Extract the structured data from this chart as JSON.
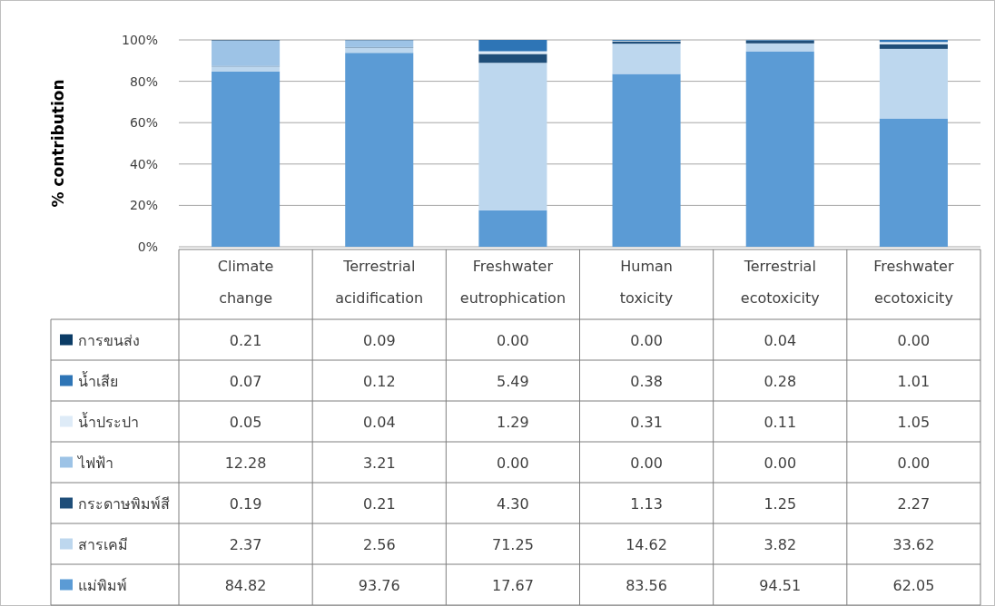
{
  "chart_data": {
    "type": "bar",
    "stacked": true,
    "ylabel": "% contribution",
    "categories": [
      "Climate change",
      "Terrestrial acidification",
      "Freshwater eutrophication",
      "Human toxicity",
      "Terrestrial ecotoxicity",
      "Freshwater ecotoxicity"
    ],
    "ylim": [
      0,
      100
    ],
    "yticks": [
      {
        "value": 0,
        "label": "0%"
      },
      {
        "value": 20,
        "label": "20%"
      },
      {
        "value": 40,
        "label": "40%"
      },
      {
        "value": 60,
        "label": "60%"
      },
      {
        "value": 80,
        "label": "80%"
      },
      {
        "value": 100,
        "label": "100%"
      }
    ],
    "grid": "y",
    "legend": "bottom",
    "series": [
      {
        "name": "แม่พิมพ์",
        "color": "#5b9bd5",
        "values": [
          84.82,
          93.76,
          17.67,
          83.56,
          94.51,
          62.05
        ],
        "value_labels": [
          "84.82",
          "93.76",
          "17.67",
          "83.56",
          "94.51",
          "62.05"
        ]
      },
      {
        "name": "สารเคมี",
        "color": "#bdd7ee",
        "values": [
          2.37,
          2.56,
          71.25,
          14.62,
          3.82,
          33.62
        ],
        "value_labels": [
          "2.37",
          "2.56",
          "71.25",
          "14.62",
          "3.82",
          "33.62"
        ]
      },
      {
        "name": "กระดาษพิมพ์สี",
        "color": "#1f4e79",
        "values": [
          0.19,
          0.21,
          4.3,
          1.13,
          1.25,
          2.27
        ],
        "value_labels": [
          "0.19",
          "0.21",
          "4.30",
          "1.13",
          "1.25",
          "2.27"
        ]
      },
      {
        "name": "ไฟฟ้า",
        "color": "#9dc3e6",
        "values": [
          12.28,
          3.21,
          0.0,
          0.0,
          0.0,
          0.0
        ],
        "value_labels": [
          "12.28",
          "3.21",
          "0.00",
          "0.00",
          "0.00",
          "0.00"
        ]
      },
      {
        "name": "น้ำประปา",
        "color": "#deebf7",
        "values": [
          0.05,
          0.04,
          1.29,
          0.31,
          0.11,
          1.05
        ],
        "value_labels": [
          "0.05",
          "0.04",
          "1.29",
          "0.31",
          "0.11",
          "1.05"
        ]
      },
      {
        "name": "น้ำเสีย",
        "color": "#2e75b6",
        "values": [
          0.07,
          0.12,
          5.49,
          0.38,
          0.28,
          1.01
        ],
        "value_labels": [
          "0.07",
          "0.12",
          "5.49",
          "0.38",
          "0.28",
          "1.01"
        ]
      },
      {
        "name": "การขนส่ง",
        "color": "#0b3c66",
        "values": [
          0.21,
          0.09,
          0.0,
          0.0,
          0.04,
          0.0
        ],
        "value_labels": [
          "0.21",
          "0.09",
          "0.00",
          "0.00",
          "0.04",
          "0.00"
        ]
      }
    ]
  }
}
